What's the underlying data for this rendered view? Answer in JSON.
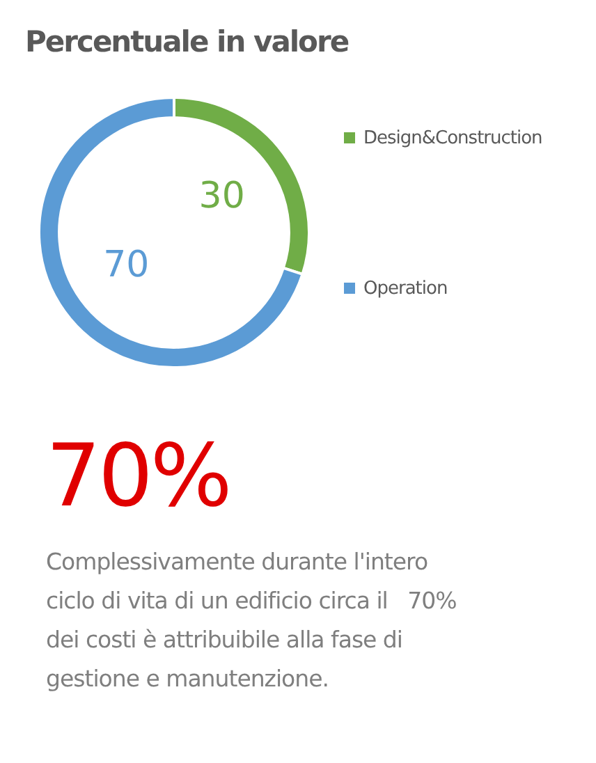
{
  "chart_data": {
    "type": "donut",
    "title": "Percentuale in valore",
    "categories": [
      "Design&Construction",
      "Operation"
    ],
    "values": [
      30,
      70
    ],
    "colors": [
      "#70ad47",
      "#5b9bd5"
    ],
    "data_labels": true,
    "legend": "right",
    "annotations": [
      "70%",
      "Complessivamente durante l'intero ciclo di vita di un edificio circa il   70% dei costi è attribuibile alla fase di gestione e manutenzione."
    ]
  }
}
